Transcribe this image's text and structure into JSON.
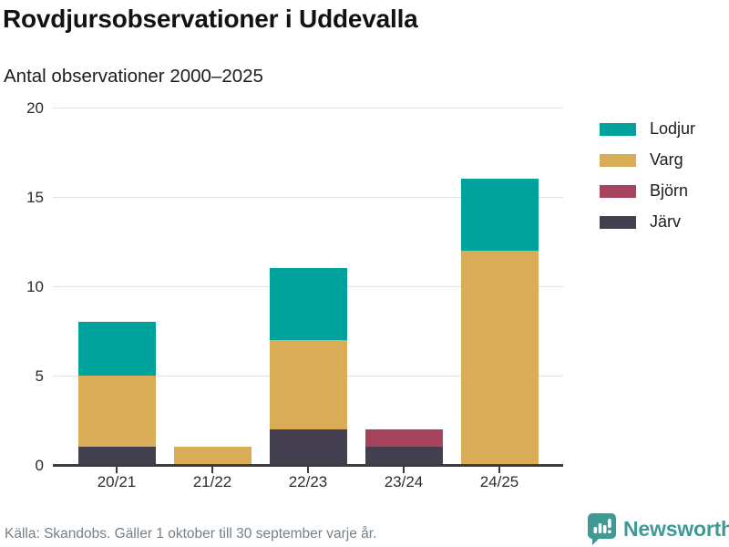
{
  "header": {
    "title": "Rovdjursobservationer i Uddevalla",
    "subtitle": "Antal observationer 2000–2025"
  },
  "chart_data": {
    "type": "bar",
    "stacked": true,
    "title": "Rovdjursobservationer i Uddevalla",
    "subtitle": "Antal observationer 2000–2025",
    "categories": [
      "20/21",
      "21/22",
      "22/23",
      "23/24",
      "24/25"
    ],
    "series": [
      {
        "name": "Järv",
        "color": "#433f4e",
        "values": [
          1,
          0,
          2,
          1,
          0
        ]
      },
      {
        "name": "Varg",
        "color": "#d9ad58",
        "values": [
          4,
          1,
          5,
          0,
          12
        ]
      },
      {
        "name": "Björn",
        "color": "#a64460",
        "values": [
          0,
          0,
          0,
          1,
          0
        ]
      },
      {
        "name": "Lodjur",
        "color": "#00a39b",
        "values": [
          3,
          0,
          4,
          0,
          4
        ]
      }
    ],
    "totals": [
      8,
      1,
      11,
      2,
      16
    ],
    "legend": [
      "Lodjur",
      "Varg",
      "Björn",
      "Järv"
    ],
    "legend_position": "right",
    "xlabel": "",
    "ylabel": "",
    "ylim": [
      0,
      20
    ],
    "yticks": [
      0,
      5,
      10,
      15,
      20
    ],
    "grid": true
  },
  "footer": {
    "source": "Källa: Skandobs. Gäller 1 oktober till 30 september varje år.",
    "brand": "Newsworthy"
  },
  "colors": {
    "axis": "#3d3d3d",
    "grid": "#e3e3e3",
    "text": "#1c1c1c",
    "muted": "#75808a",
    "brand_teal": "#3f9a96"
  }
}
